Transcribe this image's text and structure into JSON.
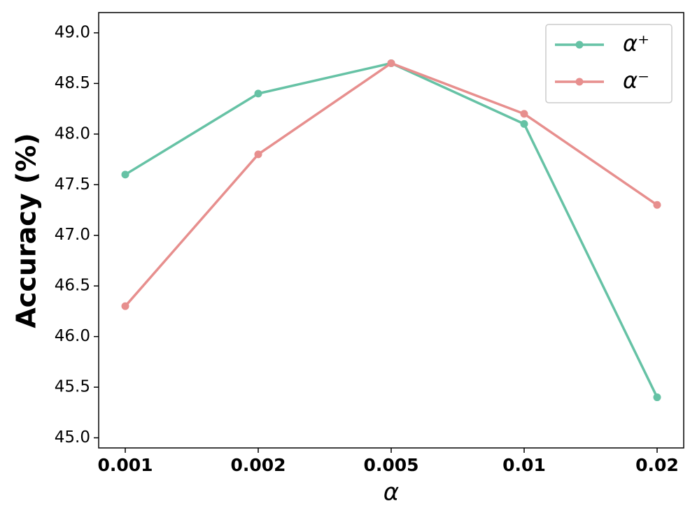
{
  "chart_data": {
    "type": "line",
    "x_label": "α",
    "y_label": "Accuracy (%)",
    "categories": [
      "0.001",
      "0.002",
      "0.005",
      "0.01",
      "0.02"
    ],
    "series": [
      {
        "name": "α⁺",
        "color": "#66c2a5",
        "values": [
          47.6,
          48.4,
          48.7,
          48.1,
          45.4
        ]
      },
      {
        "name": "α⁻",
        "color": "#e78f8e",
        "values": [
          46.3,
          47.8,
          48.7,
          48.2,
          47.3
        ]
      }
    ],
    "ylim": [
      44.9,
      49.2
    ],
    "yticks": [
      {
        "value": 45,
        "label": "45.0"
      },
      {
        "value": 45.5,
        "label": "45.5"
      },
      {
        "value": 46,
        "label": "46.0"
      },
      {
        "value": 46.5,
        "label": "46.5"
      },
      {
        "value": 47,
        "label": "47.0"
      },
      {
        "value": 47.5,
        "label": "47.5"
      },
      {
        "value": 48,
        "label": "48.0"
      },
      {
        "value": 48.5,
        "label": "48.5"
      },
      {
        "value": 49,
        "label": "49.0"
      }
    ],
    "legend": "upper right",
    "grid": false
  }
}
